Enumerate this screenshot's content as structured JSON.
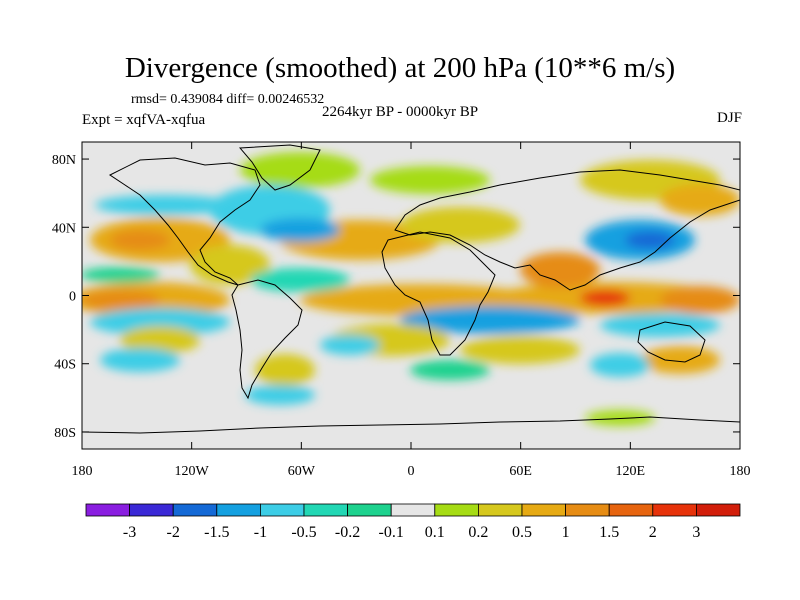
{
  "header": {
    "title": "Divergence (smoothed) at 200 hPa (10**6 m/s)",
    "stats": "rmsd= 0.439084 diff= 0.00246532",
    "experiment": "Expt = xqfVA-xqfua",
    "period": "2264kyr BP - 0000kyr BP",
    "season": "DJF"
  },
  "axes": {
    "lat_labels": [
      "80N",
      "40N",
      "0",
      "40S",
      "80S"
    ],
    "lat_values": [
      80,
      40,
      0,
      -40,
      -80
    ],
    "lon_labels": [
      "180",
      "120W",
      "60W",
      "0",
      "60E",
      "120E",
      "180"
    ],
    "lon_values": [
      -180,
      -120,
      -60,
      0,
      60,
      120,
      180
    ]
  },
  "colorbar": {
    "labels": [
      "-3",
      "-2",
      "-1.5",
      "-1",
      "-0.5",
      "-0.2",
      "-0.1",
      "0.1",
      "0.2",
      "0.5",
      "1",
      "1.5",
      "2",
      "3"
    ],
    "colors": [
      "#8a1ee0",
      "#3a28d6",
      "#1469d6",
      "#14a0e0",
      "#3ccde6",
      "#22d7b4",
      "#1ed28e",
      "#e6e6e6",
      "#a6dc14",
      "#d6c81e",
      "#e6aa14",
      "#e68c14",
      "#e6640f",
      "#e6320a",
      "#d21e0a"
    ]
  },
  "colors": {
    "background": "#e6e6e6",
    "coast": "#000000"
  }
}
